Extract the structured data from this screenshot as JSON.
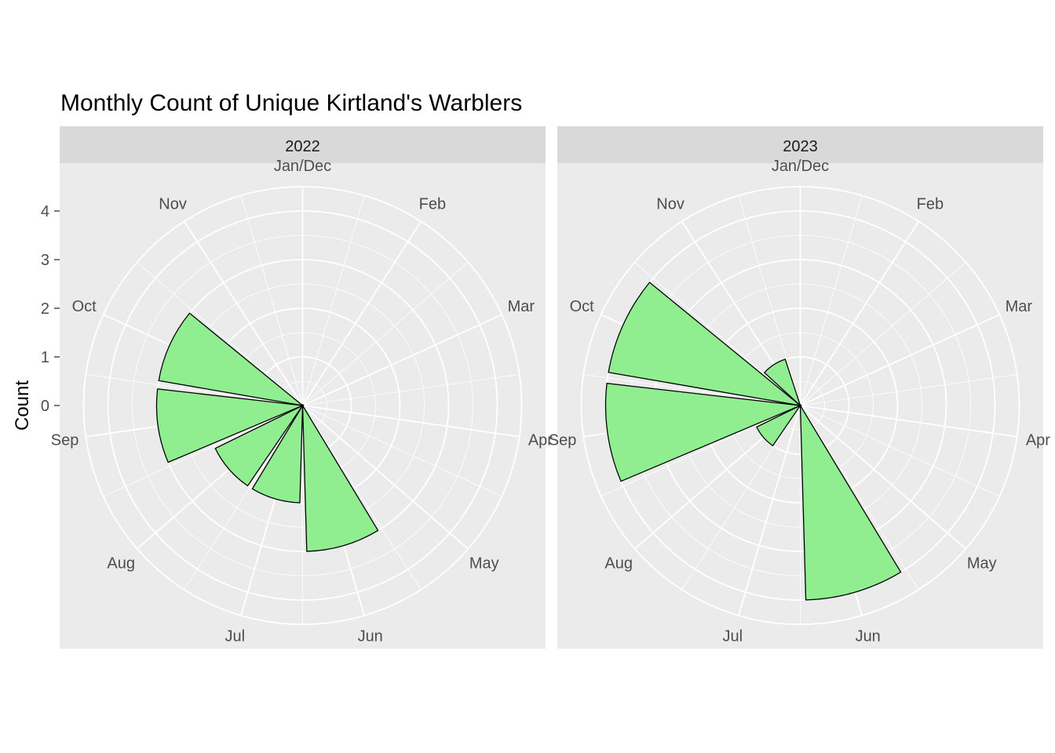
{
  "chart_data": {
    "type": "bar",
    "coord": "polar",
    "title": "Monthly Count of Unique Kirtland's Warblers",
    "xlabel": "",
    "ylabel": "Count",
    "ylim": [
      0,
      4.5
    ],
    "yticks": [
      "0",
      "1",
      "2",
      "3",
      "4"
    ],
    "months": [
      "Jan/Dec",
      "Feb",
      "Mar",
      "Apr",
      "May",
      "Jun",
      "Jul",
      "Aug",
      "Sep",
      "Oct",
      "Nov"
    ],
    "colors": {
      "fill": "#90EE90",
      "outline": "#000000",
      "panel": "#EBEBEB",
      "strip": "#D9D9D9",
      "grid": "#FFFFFF"
    },
    "panels": [
      {
        "label": "2022",
        "categories": [
          "Jun",
          "Jul",
          "Aug",
          "Sep",
          "Oct"
        ],
        "values": [
          3.0,
          2.0,
          2.0,
          3.0,
          3.0
        ]
      },
      {
        "label": "2023",
        "categories": [
          "Jun",
          "Aug",
          "Sep",
          "Oct",
          "Nov"
        ],
        "values": [
          4.0,
          1.0,
          4.0,
          4.0,
          1.0
        ]
      }
    ]
  }
}
